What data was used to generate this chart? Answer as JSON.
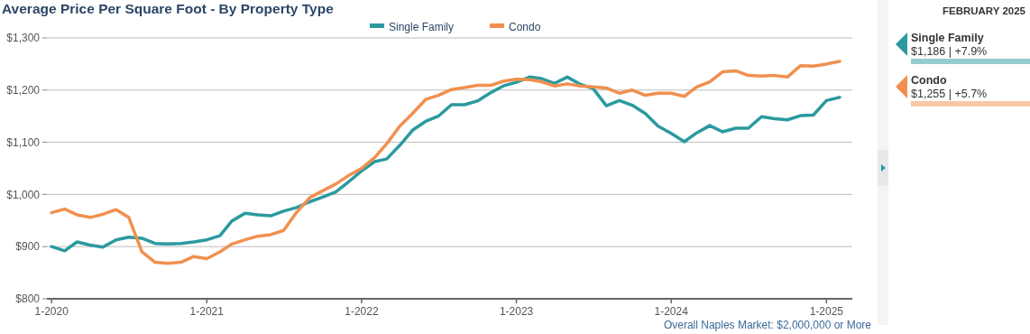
{
  "chart_data": {
    "type": "line",
    "title": "Average Price Per Square Foot - By Property Type",
    "x": [
      "2020-01",
      "2020-02",
      "2020-03",
      "2020-04",
      "2020-05",
      "2020-06",
      "2020-07",
      "2020-08",
      "2020-09",
      "2020-10",
      "2020-11",
      "2020-12",
      "2021-01",
      "2021-02",
      "2021-03",
      "2021-04",
      "2021-05",
      "2021-06",
      "2021-07",
      "2021-08",
      "2021-09",
      "2021-10",
      "2021-11",
      "2021-12",
      "2022-01",
      "2022-02",
      "2022-03",
      "2022-04",
      "2022-05",
      "2022-06",
      "2022-07",
      "2022-08",
      "2022-09",
      "2022-10",
      "2022-11",
      "2022-12",
      "2023-01",
      "2023-02",
      "2023-03",
      "2023-04",
      "2023-05",
      "2023-06",
      "2023-07",
      "2023-08",
      "2023-09",
      "2023-10",
      "2023-11",
      "2023-12",
      "2024-01",
      "2024-02",
      "2024-03",
      "2024-04",
      "2024-05",
      "2024-06",
      "2024-07",
      "2024-08",
      "2024-09",
      "2024-10",
      "2024-11",
      "2024-12",
      "2025-01",
      "2025-02"
    ],
    "series": [
      {
        "name": "Single Family",
        "color": "#2a9a9f",
        "values": [
          900,
          892,
          909,
          903,
          899,
          913,
          918,
          916,
          906,
          905,
          906,
          909,
          913,
          921,
          949,
          964,
          961,
          959,
          968,
          975,
          986,
          995,
          1005,
          1024,
          1045,
          1063,
          1068,
          1094,
          1123,
          1140,
          1150,
          1172,
          1172,
          1179,
          1195,
          1208,
          1215,
          1225,
          1222,
          1213,
          1225,
          1211,
          1203,
          1170,
          1180,
          1171,
          1155,
          1131,
          1117,
          1101,
          1118,
          1132,
          1120,
          1127,
          1127,
          1149,
          1145,
          1143,
          1151,
          1152,
          1180,
          1186
        ]
      },
      {
        "name": "Condo",
        "color": "#f0904f",
        "values": [
          965,
          972,
          961,
          956,
          962,
          971,
          956,
          890,
          870,
          868,
          870,
          881,
          877,
          890,
          905,
          913,
          920,
          923,
          931,
          966,
          994,
          1007,
          1020,
          1036,
          1050,
          1071,
          1097,
          1131,
          1155,
          1182,
          1190,
          1201,
          1205,
          1209,
          1209,
          1217,
          1221,
          1220,
          1216,
          1208,
          1212,
          1208,
          1206,
          1204,
          1194,
          1200,
          1190,
          1194,
          1194,
          1188,
          1206,
          1216,
          1235,
          1237,
          1228,
          1227,
          1228,
          1225,
          1247,
          1246,
          1250,
          1255
        ]
      }
    ],
    "xlim": [
      "2019-12-21",
      "2025-03-03"
    ],
    "xticks": [
      {
        "value": "2020-01",
        "label": "1-2020"
      },
      {
        "value": "2021-01",
        "label": "1-2021"
      },
      {
        "value": "2022-01",
        "label": "1-2022"
      },
      {
        "value": "2023-01",
        "label": "1-2023"
      },
      {
        "value": "2024-01",
        "label": "1-2024"
      },
      {
        "value": "2025-01",
        "label": "1-2025"
      }
    ],
    "ylim": [
      800,
      1300
    ],
    "yticks": [
      {
        "value": 800,
        "label": "$800"
      },
      {
        "value": 900,
        "label": "$900"
      },
      {
        "value": 1000,
        "label": "$1,000"
      },
      {
        "value": 1100,
        "label": "$1,100"
      },
      {
        "value": 1200,
        "label": "$1,200"
      },
      {
        "value": 1300,
        "label": "$1,300"
      }
    ],
    "grid": "y",
    "legend": "top",
    "marker": "none",
    "line_style": "solid",
    "annotations": [
      "Overall Naples Market: $2,000,000 or More",
      "FEBRUARY 2025",
      "$1,186 | +7.9%",
      "$1,255 | +5.7%"
    ]
  }
}
